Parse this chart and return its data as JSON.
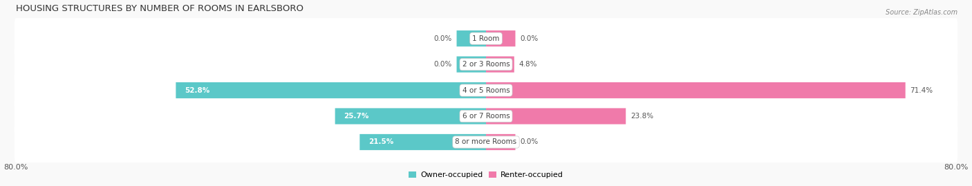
{
  "title": "HOUSING STRUCTURES BY NUMBER OF ROOMS IN EARLSBORO",
  "source": "Source: ZipAtlas.com",
  "categories": [
    "1 Room",
    "2 or 3 Rooms",
    "4 or 5 Rooms",
    "6 or 7 Rooms",
    "8 or more Rooms"
  ],
  "owner_values": [
    0.0,
    0.0,
    52.8,
    25.7,
    21.5
  ],
  "renter_values": [
    0.0,
    4.8,
    71.4,
    23.8,
    0.0
  ],
  "owner_color": "#5bc8c8",
  "renter_color": "#f07aaa",
  "bar_bg_color": "#e4e4e4",
  "x_min": -80.0,
  "x_max": 80.0,
  "legend_owner": "Owner-occupied",
  "legend_renter": "Renter-occupied",
  "figsize": [
    14.06,
    2.69
  ],
  "dpi": 100,
  "bar_height": 0.62,
  "title_fontsize": 9.5,
  "label_fontsize": 7.5,
  "tick_fontsize": 8,
  "legend_fontsize": 8,
  "min_stub": 5.0,
  "fig_bg": "#f9f9f9",
  "row_bg": "#ebebeb"
}
